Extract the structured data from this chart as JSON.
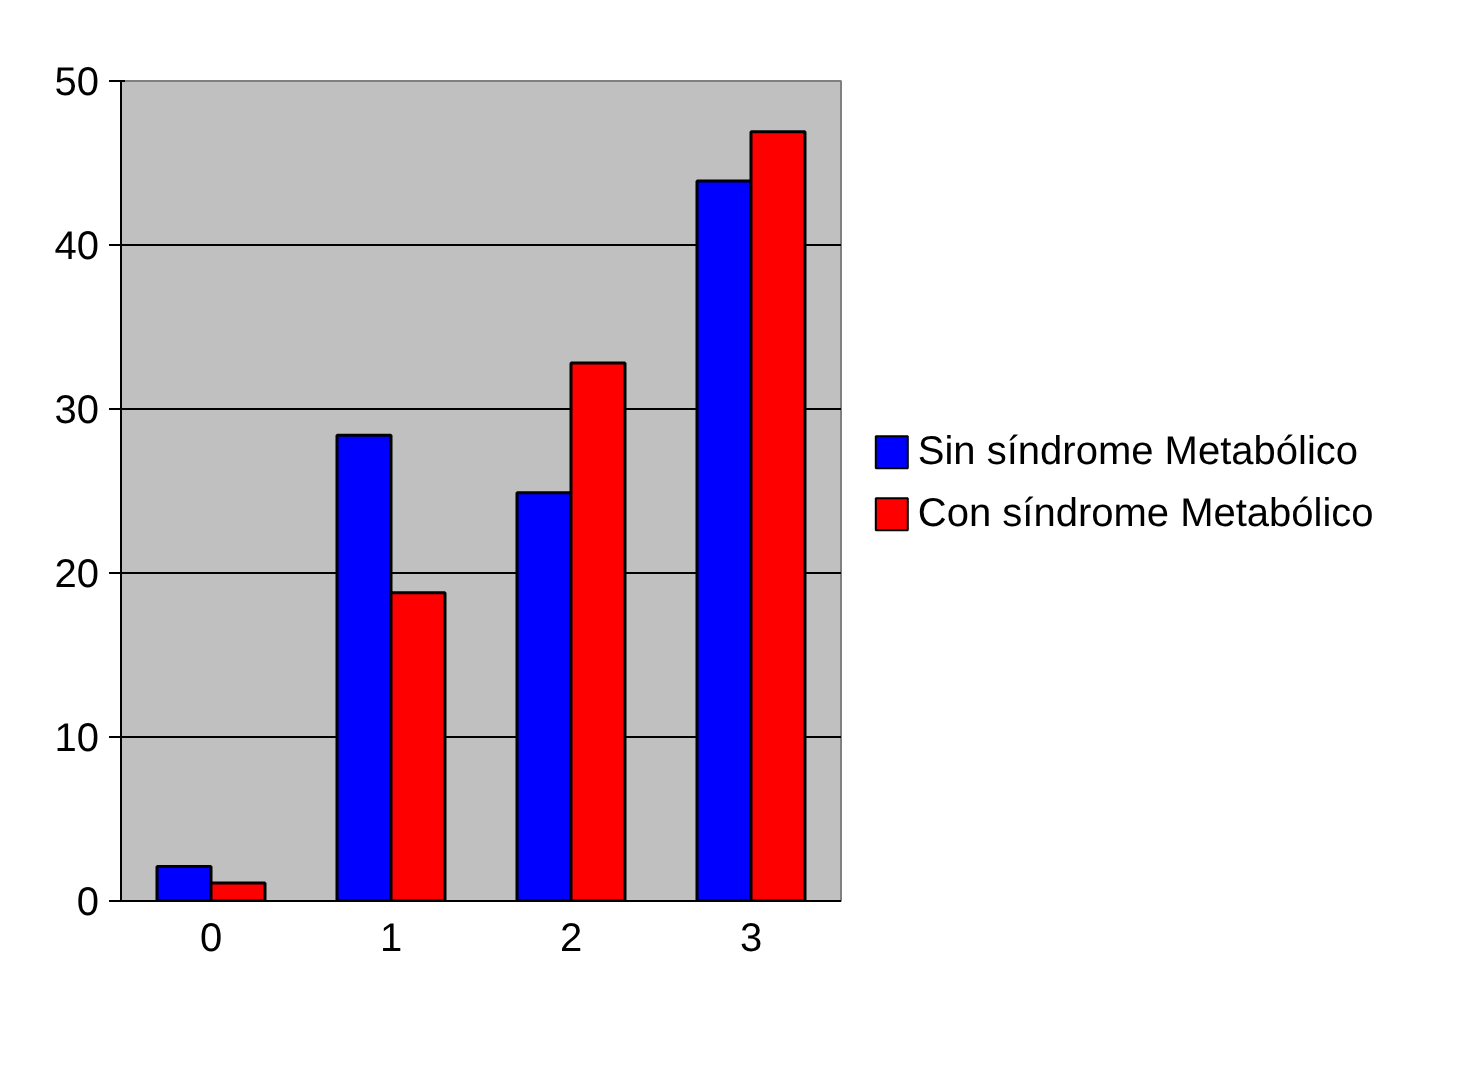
{
  "chart_data": {
    "type": "bar",
    "categories": [
      "0",
      "1",
      "2",
      "3"
    ],
    "series": [
      {
        "name": "Sin síndrome Metabólico",
        "color": "#0000ff",
        "values": [
          2.1,
          28.4,
          24.9,
          43.9
        ]
      },
      {
        "name": "Con síndrome Metabólico",
        "color": "#ff0000",
        "values": [
          1.1,
          18.8,
          32.8,
          46.9
        ]
      }
    ],
    "ylim": [
      0,
      50
    ],
    "yticks": [
      0,
      10,
      20,
      30,
      40,
      50
    ],
    "grid": "y",
    "legend": "right"
  }
}
